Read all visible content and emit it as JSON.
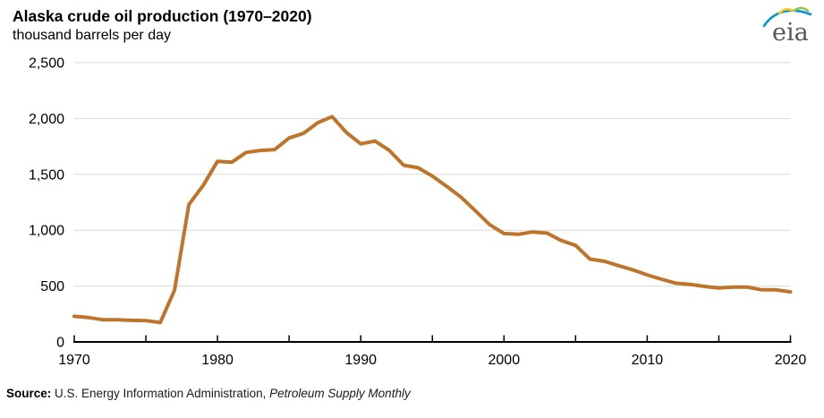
{
  "header": {
    "title": "Alaska crude oil production (1970–2020)",
    "subtitle": "thousand barrels per day"
  },
  "logo": {
    "text": "eia"
  },
  "source": {
    "label": "Source:",
    "text": " U.S. Energy Information Administration, ",
    "link": "Petroleum Supply Monthly"
  },
  "colors": {
    "line": "#bf7529",
    "grid": "#d9d9d9",
    "axis": "#000000",
    "link_blue": "#2a9ecb",
    "logo_gray": "#55585b",
    "logo_blue": "#0096d6",
    "logo_green": "#8dc63f",
    "logo_yellow": "#ffc528"
  },
  "chart_data": {
    "type": "line",
    "title": "Alaska crude oil production (1970–2020)",
    "ylabel": "thousand barrels per day",
    "series_name": "Alaska crude oil production",
    "legend": "none",
    "grid": "horizontal",
    "xlim": [
      1970,
      2020
    ],
    "ylim": [
      0,
      2500
    ],
    "yticks": [
      0,
      500,
      1000,
      1500,
      2000,
      2500
    ],
    "xticks_major": [
      1970,
      1980,
      1990,
      2000,
      2010,
      2020
    ],
    "xticks_minor_step": 5,
    "x": [
      1970,
      1971,
      1972,
      1973,
      1974,
      1975,
      1976,
      1977,
      1978,
      1979,
      1980,
      1981,
      1982,
      1983,
      1984,
      1985,
      1986,
      1987,
      1988,
      1989,
      1990,
      1991,
      1992,
      1993,
      1994,
      1995,
      1996,
      1997,
      1998,
      1999,
      2000,
      2001,
      2002,
      2003,
      2004,
      2005,
      2006,
      2007,
      2008,
      2009,
      2010,
      2011,
      2012,
      2013,
      2014,
      2015,
      2016,
      2017,
      2018,
      2019,
      2020
    ],
    "values": [
      229,
      218,
      199,
      198,
      193,
      191,
      173,
      464,
      1229,
      1401,
      1617,
      1609,
      1696,
      1714,
      1722,
      1825,
      1867,
      1962,
      2017,
      1874,
      1773,
      1798,
      1714,
      1582,
      1559,
      1484,
      1393,
      1296,
      1175,
      1050,
      970,
      963,
      984,
      974,
      908,
      864,
      741,
      722,
      683,
      645,
      600,
      561,
      526,
      515,
      497,
      483,
      490,
      490,
      466,
      466,
      448
    ]
  }
}
